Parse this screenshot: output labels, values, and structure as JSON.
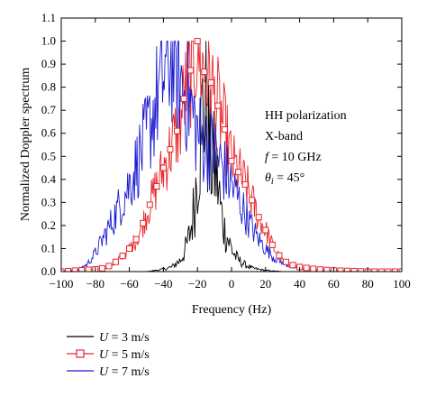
{
  "chart_data": {
    "type": "line",
    "xlabel": "Frequency (Hz)",
    "ylabel": "Normalized Doppler spectrum",
    "xlim": [
      -100,
      100
    ],
    "ylim": [
      0,
      1.1
    ],
    "xticks": [
      -100,
      -80,
      -60,
      -40,
      -20,
      0,
      20,
      40,
      60,
      80,
      100
    ],
    "yticks": [
      0.0,
      0.1,
      0.2,
      0.3,
      0.4,
      0.5,
      0.6,
      0.7,
      0.8,
      0.9,
      1.0,
      1.1
    ],
    "xtick_labels": [
      "−100",
      "−80",
      "−60",
      "−40",
      "−20",
      "0",
      "20",
      "40",
      "60",
      "80",
      "100"
    ],
    "ytick_labels": [
      "0.0",
      "0.1",
      "0.2",
      "0.3",
      "0.4",
      "0.5",
      "0.6",
      "0.7",
      "0.8",
      "0.9",
      "1.0",
      "1.1"
    ],
    "grid": false,
    "legend_position": "bottom-left, outside",
    "annotations": {
      "line1": "HH polarization",
      "line2": "X-band",
      "line3_var": "f",
      "line3_rest": " = 10 GHz",
      "line4_var": "θ",
      "line4_sub": "i",
      "line4_rest": " = 45°"
    },
    "series": [
      {
        "name": "U = 3 m/s",
        "name_var": "U",
        "name_rest": " = 3 m/s",
        "color": "#000000",
        "marker": "none",
        "x": [
          -100,
          -70,
          -50,
          -45,
          -40,
          -35,
          -30,
          -28,
          -26,
          -24,
          -22,
          -20,
          -18,
          -16,
          -14,
          -12,
          -10,
          -8,
          -6,
          -4,
          -2,
          0,
          2,
          4,
          8,
          12,
          20,
          30,
          50,
          100
        ],
        "y": [
          0.0,
          0.0,
          0.0,
          0.005,
          0.01,
          0.02,
          0.05,
          0.08,
          0.12,
          0.18,
          0.28,
          0.45,
          0.62,
          0.75,
          0.62,
          0.48,
          0.45,
          0.38,
          0.25,
          0.18,
          0.14,
          0.1,
          0.07,
          0.05,
          0.03,
          0.015,
          0.005,
          0.0,
          0.0,
          0.0
        ]
      },
      {
        "name": "U = 5 m/s",
        "name_var": "U",
        "name_rest": " = 5 m/s",
        "color": "#e8262a",
        "marker": "square-open",
        "x": [
          -100,
          -90,
          -80,
          -75,
          -70,
          -65,
          -60,
          -55,
          -50,
          -45,
          -40,
          -35,
          -30,
          -28,
          -25,
          -22,
          -20,
          -18,
          -15,
          -12,
          -10,
          -8,
          -5,
          -2,
          0,
          5,
          10,
          15,
          20,
          25,
          30,
          35,
          40,
          50,
          60,
          80,
          100
        ],
        "y": [
          0.0,
          0.005,
          0.01,
          0.015,
          0.03,
          0.06,
          0.1,
          0.15,
          0.25,
          0.35,
          0.45,
          0.55,
          0.65,
          0.75,
          0.85,
          0.92,
          1.0,
          0.9,
          0.85,
          0.82,
          0.75,
          0.72,
          0.65,
          0.55,
          0.48,
          0.42,
          0.35,
          0.25,
          0.18,
          0.1,
          0.05,
          0.03,
          0.02,
          0.01,
          0.005,
          0.0,
          0.0
        ]
      },
      {
        "name": "U = 7 m/s",
        "name_var": "U",
        "name_rest": " = 7 m/s",
        "color": "#1a1ad1",
        "marker": "none",
        "x": [
          -100,
          -90,
          -85,
          -80,
          -75,
          -70,
          -65,
          -60,
          -55,
          -50,
          -45,
          -40,
          -35,
          -30,
          -25,
          -20,
          -15,
          -10,
          -5,
          0,
          5,
          10,
          15,
          20,
          25,
          30,
          35,
          40,
          50,
          60,
          80,
          100
        ],
        "y": [
          0.0,
          0.01,
          0.03,
          0.08,
          0.15,
          0.22,
          0.3,
          0.38,
          0.48,
          0.58,
          0.72,
          0.85,
          0.95,
          0.82,
          0.75,
          0.6,
          0.55,
          0.52,
          0.45,
          0.38,
          0.3,
          0.22,
          0.15,
          0.1,
          0.06,
          0.04,
          0.02,
          0.01,
          0.005,
          0.0,
          0.0,
          0.0
        ]
      }
    ]
  }
}
